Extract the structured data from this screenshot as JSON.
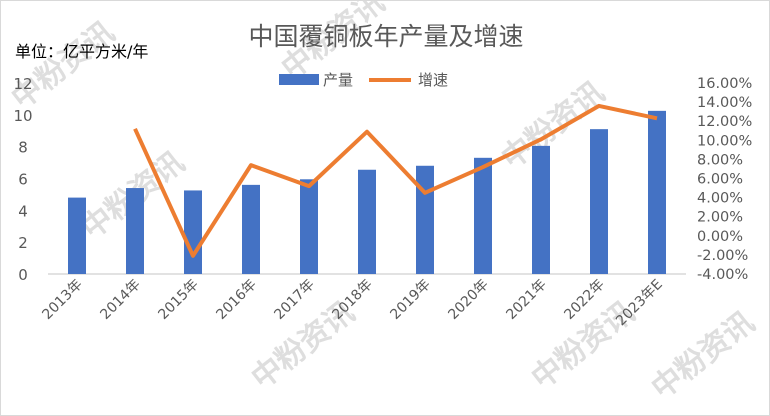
{
  "chart_data": {
    "type": "bar+line",
    "title": "中国覆铜板年产量及增速",
    "unit_label": "单位：亿平方米/年",
    "categories": [
      "2013年",
      "2014年",
      "2015年",
      "2016年",
      "2017年",
      "2018年",
      "2019年",
      "2020年",
      "2021年",
      "2022年",
      "2023年E"
    ],
    "series": [
      {
        "name": "产量",
        "type": "bar",
        "axis": "left",
        "color": "#4472C4",
        "values": [
          4.8,
          5.4,
          5.25,
          5.6,
          5.95,
          6.55,
          6.8,
          7.3,
          8.05,
          9.1,
          10.25
        ]
      },
      {
        "name": "增速",
        "type": "line",
        "axis": "right",
        "color": "#ED7D31",
        "values": [
          null,
          11.2,
          -2.1,
          7.4,
          5.2,
          10.9,
          4.5,
          7.2,
          10.1,
          13.6,
          12.3
        ]
      }
    ],
    "left_axis": {
      "ylim": [
        0,
        12
      ],
      "ticks": [
        "0",
        "2",
        "4",
        "6",
        "8",
        "10",
        "12"
      ]
    },
    "right_axis": {
      "ylim": [
        -4,
        16
      ],
      "ticks": [
        "-4.00%",
        "-2.00%",
        "0.00%",
        "2.00%",
        "4.00%",
        "6.00%",
        "8.00%",
        "10.00%",
        "12.00%",
        "14.00%",
        "16.00%"
      ]
    },
    "legend": "top-center",
    "grid": false
  },
  "watermark": "中粉资讯"
}
